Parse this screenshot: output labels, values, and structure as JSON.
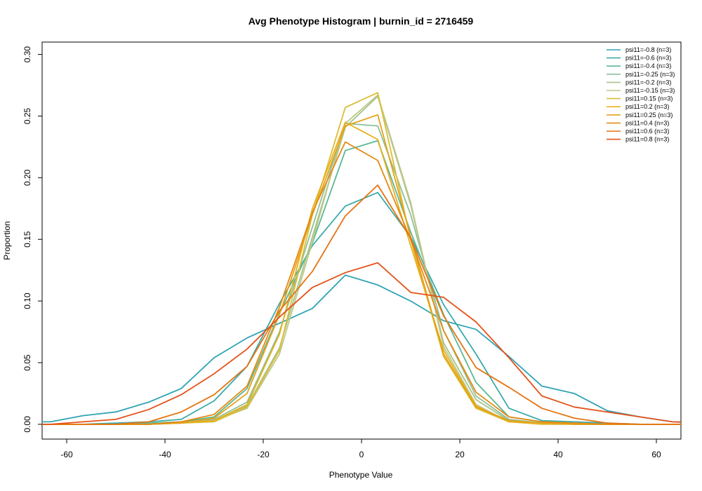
{
  "chart_data": {
    "type": "line",
    "title": "Avg Phenotype Histogram | burnin_id = 2716459",
    "xlabel": "Phenotype Value",
    "ylabel": "Proportion",
    "xlim": [
      -65,
      65
    ],
    "ylim": [
      -0.012,
      0.31
    ],
    "xticks": [
      -60,
      -40,
      -20,
      0,
      20,
      40,
      60
    ],
    "yticks": [
      0.0,
      0.05,
      0.1,
      0.15,
      0.2,
      0.25,
      0.3
    ],
    "ytick_labels": [
      "0.00",
      "0.05",
      "0.10",
      "0.15",
      "0.20",
      "0.25",
      "0.30"
    ],
    "grid": false,
    "legend_position": "top-right",
    "x": [
      -70,
      -63.3,
      -56.7,
      -50,
      -43.3,
      -36.7,
      -30,
      -23.3,
      -16.7,
      -10,
      -3.3,
      3.3,
      10,
      16.7,
      23.3,
      30,
      36.7,
      43.3,
      50,
      56.7,
      63.3,
      70
    ],
    "series": [
      {
        "name": "psi11=-0.8 (n=3)",
        "color": "#2fa4b4",
        "values": [
          0.002,
          0.002,
          0.007,
          0.01,
          0.018,
          0.029,
          0.054,
          0.07,
          0.082,
          0.094,
          0.121,
          0.113,
          0.1,
          0.084,
          0.077,
          0.055,
          0.031,
          0.025,
          0.011,
          0.006,
          0.002,
          0.001
        ]
      },
      {
        "name": "psi11=-0.6 (n=3)",
        "color": "#3aaaa8",
        "values": [
          0,
          0,
          0,
          0.001,
          0.002,
          0.004,
          0.019,
          0.047,
          0.098,
          0.145,
          0.177,
          0.188,
          0.152,
          0.097,
          0.057,
          0.013,
          0.003,
          0.002,
          0.001,
          0,
          0,
          0
        ]
      },
      {
        "name": "psi11=-0.4 (n=3)",
        "color": "#5ab894",
        "values": [
          0,
          0,
          0,
          0,
          0.001,
          0.002,
          0.006,
          0.029,
          0.09,
          0.147,
          0.222,
          0.23,
          0.156,
          0.089,
          0.034,
          0.006,
          0.002,
          0.001,
          0,
          0,
          0,
          0
        ]
      },
      {
        "name": "psi11=-0.25 (n=3)",
        "color": "#8ec09a",
        "values": [
          0,
          0,
          0,
          0,
          0,
          0.001,
          0.004,
          0.018,
          0.075,
          0.16,
          0.244,
          0.242,
          0.17,
          0.076,
          0.023,
          0.004,
          0.001,
          0,
          0,
          0,
          0,
          0
        ]
      },
      {
        "name": "psi11=-0.2 (n=3)",
        "color": "#a8c28a",
        "values": [
          0,
          0,
          0,
          0,
          0,
          0.001,
          0.003,
          0.015,
          0.062,
          0.152,
          0.241,
          0.266,
          0.178,
          0.066,
          0.02,
          0.003,
          0.001,
          0,
          0,
          0,
          0,
          0
        ]
      },
      {
        "name": "psi11=-0.15 (n=3)",
        "color": "#bcc888",
        "values": [
          0,
          0,
          0,
          0,
          0,
          0.001,
          0.003,
          0.013,
          0.057,
          0.148,
          0.244,
          0.267,
          0.18,
          0.063,
          0.016,
          0.002,
          0.001,
          0,
          0,
          0,
          0,
          0
        ]
      },
      {
        "name": "psi11=0.15 (n=3)",
        "color": "#dcbc34",
        "values": [
          0,
          0,
          0,
          0,
          0,
          0.001,
          0.002,
          0.014,
          0.06,
          0.17,
          0.257,
          0.269,
          0.15,
          0.055,
          0.013,
          0.002,
          0,
          0,
          0,
          0,
          0,
          0
        ]
      },
      {
        "name": "psi11=0.2 (n=3)",
        "color": "#e6b01e",
        "values": [
          0,
          0,
          0,
          0,
          0,
          0.001,
          0.003,
          0.016,
          0.073,
          0.175,
          0.245,
          0.231,
          0.145,
          0.06,
          0.015,
          0.002,
          0.001,
          0,
          0,
          0,
          0,
          0
        ]
      },
      {
        "name": "psi11=0.25 (n=3)",
        "color": "#e6a11a",
        "values": [
          0,
          0,
          0,
          0,
          0,
          0.001,
          0.005,
          0.025,
          0.089,
          0.17,
          0.242,
          0.251,
          0.152,
          0.057,
          0.014,
          0.003,
          0.001,
          0,
          0,
          0,
          0,
          0
        ]
      },
      {
        "name": "psi11=0.4 (n=3)",
        "color": "#e68a12",
        "values": [
          0,
          0,
          0,
          0,
          0,
          0.002,
          0.008,
          0.031,
          0.095,
          0.172,
          0.229,
          0.214,
          0.15,
          0.076,
          0.026,
          0.006,
          0.002,
          0.001,
          0,
          0,
          0,
          0
        ]
      },
      {
        "name": "psi11=0.6 (n=3)",
        "color": "#e47412",
        "values": [
          0,
          0,
          0,
          0,
          0.002,
          0.01,
          0.024,
          0.047,
          0.092,
          0.124,
          0.169,
          0.194,
          0.151,
          0.088,
          0.046,
          0.03,
          0.013,
          0.005,
          0.001,
          0,
          0,
          0
        ]
      },
      {
        "name": "psi11=0.8 (n=3)",
        "color": "#e4521a",
        "values": [
          0,
          0,
          0.002,
          0.004,
          0.012,
          0.024,
          0.041,
          0.061,
          0.087,
          0.111,
          0.123,
          0.131,
          0.107,
          0.103,
          0.083,
          0.054,
          0.023,
          0.014,
          0.01,
          0.006,
          0.002,
          0.001
        ]
      }
    ]
  }
}
